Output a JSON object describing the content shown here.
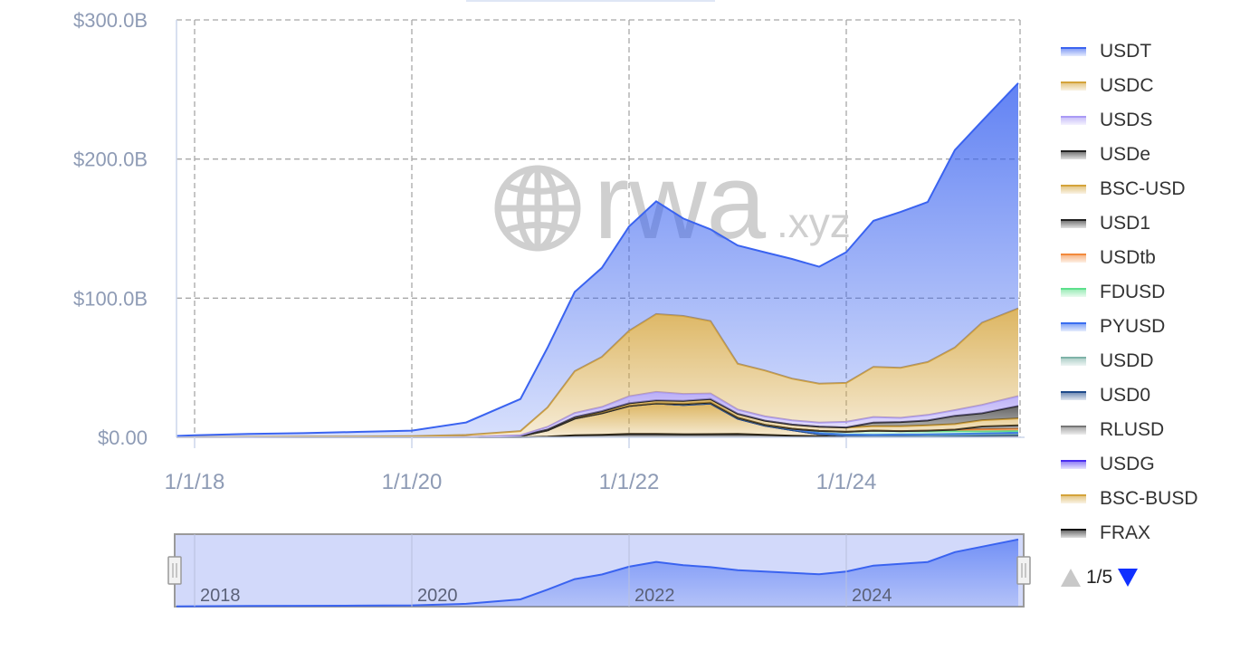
{
  "watermark": {
    "main": "rwa",
    "suffix": ".xyz"
  },
  "chart_data": {
    "type": "area",
    "stacked": true,
    "title": "",
    "xlabel": "",
    "ylabel": "",
    "ylim": [
      0,
      300
    ],
    "y_unit": "billion USD",
    "y_ticks": [
      "$0.00",
      "$100.0B",
      "$200.0B",
      "$300.0B"
    ],
    "y_tick_values": [
      0,
      100,
      200,
      300
    ],
    "x_ticks": [
      "1/1/18",
      "1/1/20",
      "1/1/22",
      "1/1/24"
    ],
    "x_tick_dates": [
      "2018-01",
      "2020-01",
      "2022-01",
      "2024-01"
    ],
    "navigator_labels": [
      "2018",
      "2020",
      "2022",
      "2024"
    ],
    "grid": true,
    "legend_placement": "right",
    "legend_page": "1/5",
    "x": [
      "2017-11",
      "2018-01",
      "2018-07",
      "2019-01",
      "2019-07",
      "2020-01",
      "2020-07",
      "2021-01",
      "2021-04",
      "2021-07",
      "2021-10",
      "2022-01",
      "2022-04",
      "2022-07",
      "2022-10",
      "2023-01",
      "2023-04",
      "2023-07",
      "2023-10",
      "2024-01",
      "2024-04",
      "2024-07",
      "2024-10",
      "2025-01",
      "2025-04",
      "2025-08"
    ],
    "series": [
      {
        "name": "USDT",
        "color": "#3a63f0",
        "values": [
          0.9,
          1.3,
          2.2,
          2.5,
          3.3,
          4,
          9,
          23,
          43,
          57,
          64,
          75,
          81,
          70,
          66,
          85,
          85,
          86,
          84,
          94,
          105,
          112,
          115,
          142,
          145,
          162
        ]
      },
      {
        "name": "USDC",
        "color": "#d4a33a",
        "values": [
          0.1,
          0.2,
          0.3,
          0.4,
          0.5,
          0.7,
          1.5,
          3,
          14,
          30,
          36,
          47,
          56,
          56,
          52,
          33,
          33,
          30,
          28,
          28,
          36,
          36,
          38,
          45,
          59,
          63
        ]
      },
      {
        "name": "USDS",
        "color": "#a99af5",
        "values": [
          0,
          0,
          0,
          0.1,
          0.1,
          0.1,
          0.1,
          0.5,
          2,
          3,
          3,
          5,
          6,
          5,
          4,
          3,
          3,
          3,
          3,
          4,
          4,
          3,
          4,
          4,
          6,
          7
        ]
      },
      {
        "name": "USDe",
        "color": "#222222",
        "values": [
          0,
          0,
          0,
          0,
          0,
          0,
          0,
          0,
          0,
          0,
          0,
          0,
          0,
          0,
          0,
          0,
          0,
          0,
          0,
          0.1,
          2.5,
          3,
          3.5,
          6,
          5,
          9
        ]
      },
      {
        "name": "BSC-USD",
        "color": "#d4a33a",
        "values": [
          0,
          0,
          0,
          0,
          0,
          0,
          0,
          0.2,
          0.5,
          1,
          1.5,
          2,
          2.2,
          2.3,
          2.5,
          2.8,
          3,
          3,
          3,
          3,
          3.3,
          3.5,
          3.8,
          4,
          4.5,
          5
        ]
      },
      {
        "name": "USD1",
        "color": "#222222",
        "values": [
          0,
          0,
          0,
          0,
          0,
          0,
          0,
          0,
          0,
          0,
          0,
          0,
          0,
          0,
          0,
          0,
          0,
          0,
          0,
          0,
          0,
          0,
          0,
          0,
          2,
          2.5
        ]
      },
      {
        "name": "USDtb",
        "color": "#f28a3c",
        "values": [
          0,
          0,
          0,
          0,
          0,
          0,
          0,
          0,
          0,
          0,
          0,
          0,
          0,
          0,
          0,
          0,
          0,
          0,
          0,
          0,
          0,
          0,
          0.5,
          1,
          1.5,
          1.5
        ]
      },
      {
        "name": "FDUSD",
        "color": "#5de08c",
        "values": [
          0,
          0,
          0,
          0,
          0,
          0,
          0,
          0,
          0,
          0,
          0,
          0,
          0,
          0,
          0,
          0,
          0,
          0.3,
          1.5,
          2,
          3,
          2.5,
          2.2,
          2,
          1.5,
          1.2
        ]
      },
      {
        "name": "PYUSD",
        "color": "#3a6ef0",
        "values": [
          0,
          0,
          0,
          0,
          0,
          0,
          0,
          0,
          0,
          0,
          0,
          0,
          0,
          0,
          0,
          0,
          0,
          0,
          0.1,
          0.2,
          0.3,
          0.4,
          0.6,
          0.8,
          0.8,
          0.9
        ]
      },
      {
        "name": "USDD",
        "color": "#7fb3a8",
        "values": [
          0,
          0,
          0,
          0,
          0,
          0,
          0,
          0,
          0,
          0,
          0,
          0,
          0,
          0.7,
          0.7,
          0.7,
          0.7,
          0.7,
          0.7,
          0.7,
          0.7,
          0.7,
          0.7,
          0.7,
          0.7,
          0.7
        ]
      },
      {
        "name": "USD0",
        "color": "#1e4a8a",
        "values": [
          0,
          0,
          0,
          0,
          0,
          0,
          0,
          0,
          0,
          0,
          0,
          0,
          0,
          0,
          0,
          0,
          0,
          0,
          0,
          0,
          0,
          0.3,
          0.4,
          0.5,
          0.6,
          0.6
        ]
      },
      {
        "name": "RLUSD",
        "color": "#777777",
        "values": [
          0,
          0,
          0,
          0,
          0,
          0,
          0,
          0,
          0,
          0,
          0,
          0,
          0,
          0,
          0,
          0,
          0,
          0,
          0,
          0,
          0,
          0,
          0,
          0.1,
          0.3,
          0.6
        ]
      },
      {
        "name": "USDG",
        "color": "#4a2ef0",
        "values": [
          0,
          0,
          0,
          0,
          0,
          0,
          0,
          0,
          0,
          0,
          0,
          0,
          0,
          0,
          0,
          0,
          0,
          0,
          0,
          0,
          0,
          0,
          0,
          0,
          0.1,
          0.3
        ]
      },
      {
        "name": "BSC-BUSD",
        "color": "#d4a33a",
        "values": [
          0,
          0,
          0,
          0,
          0,
          0,
          0.1,
          0.8,
          4.5,
          12,
          15.5,
          20,
          22,
          21,
          22,
          11,
          6.5,
          4,
          1.5,
          0.5,
          0.3,
          0.2,
          0.1,
          0.1,
          0,
          0
        ]
      },
      {
        "name": "FRAX",
        "color": "#111111",
        "values": [
          0,
          0,
          0,
          0,
          0,
          0,
          0,
          0,
          0.5,
          1.5,
          1.8,
          2.5,
          2.4,
          2.2,
          2.3,
          2.4,
          1.8,
          1.2,
          0.8,
          0.6,
          0.5,
          0.4,
          0.3,
          0.3,
          0.3,
          0.3
        ]
      }
    ]
  }
}
